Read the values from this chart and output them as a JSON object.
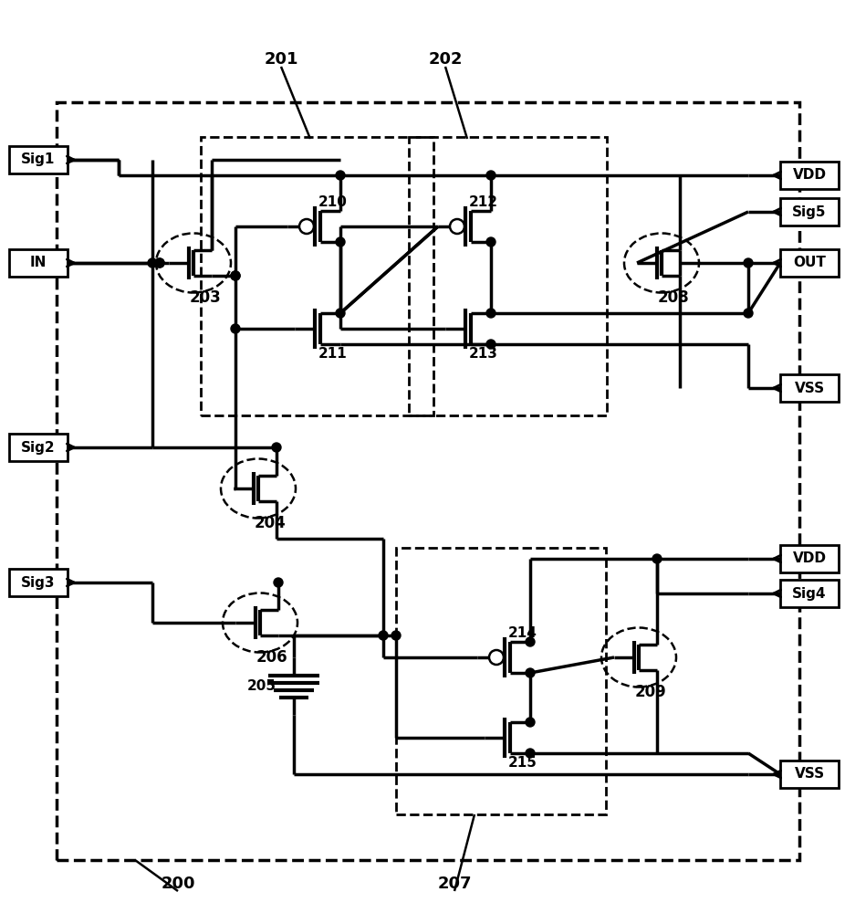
{
  "bg_color": "#ffffff",
  "lw_main": 2.5,
  "lw_thin": 1.8,
  "lw_gate_bar": 3.0,
  "dot_r": 5,
  "labels_left": [
    {
      "text": "Sig1",
      "ix": 42,
      "iy": 175
    },
    {
      "text": "IN",
      "ix": 42,
      "iy": 288
    },
    {
      "text": "Sig2",
      "ix": 42,
      "iy": 490
    },
    {
      "text": "Sig3",
      "ix": 42,
      "iy": 638
    }
  ],
  "labels_right": [
    {
      "text": "VDD",
      "ix": 887,
      "iy": 192
    },
    {
      "text": "Sig5",
      "ix": 887,
      "iy": 232
    },
    {
      "text": "OUT",
      "ix": 887,
      "iy": 288
    },
    {
      "text": "VSS",
      "ix": 887,
      "iy": 425
    },
    {
      "text": "VDD",
      "ix": 887,
      "iy": 612
    },
    {
      "text": "Sig4",
      "ix": 887,
      "iy": 650
    },
    {
      "text": "VSS",
      "ix": 887,
      "iy": 848
    }
  ],
  "ref_labels": [
    {
      "text": "201",
      "ix": 308,
      "iy": 65
    },
    {
      "text": "202",
      "ix": 488,
      "iy": 65
    },
    {
      "text": "200",
      "ix": 195,
      "iy": 968
    },
    {
      "text": "207",
      "ix": 498,
      "iy": 968
    }
  ]
}
